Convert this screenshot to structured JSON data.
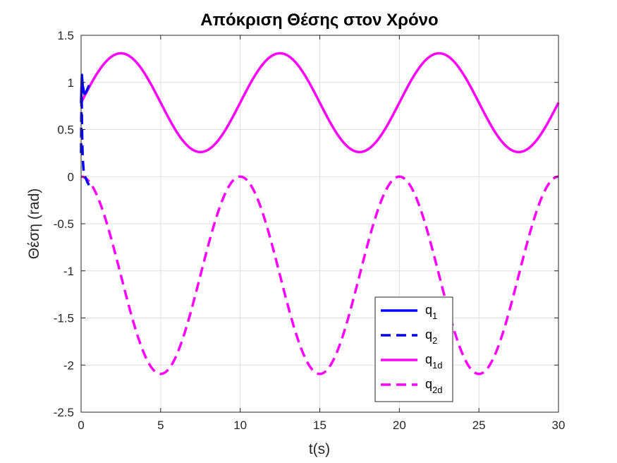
{
  "chart_data": {
    "type": "line",
    "title": "Απόκριση Θέσης στον Χρόνο",
    "xlabel": "t(s)",
    "ylabel": "Θέση (rad)",
    "xlim": [
      0,
      30
    ],
    "ylim": [
      -2.5,
      1.5
    ],
    "xticks": [
      "0",
      "5",
      "10",
      "15",
      "20",
      "25",
      "30"
    ],
    "yticks": [
      "-2.5",
      "-2",
      "-1.5",
      "-1",
      "-0.5",
      "0",
      "0.5",
      "1",
      "1.5"
    ],
    "grid": true,
    "legend_position": "bottom-right inside",
    "series": [
      {
        "name": "q",
        "sub": "1",
        "style": "solid",
        "color": "#0000ff",
        "x": [
          0,
          0.05,
          0.1,
          0.2,
          0.3,
          0.4,
          0.5
        ],
        "y": [
          0.78,
          1.08,
          0.97,
          0.88,
          0.89,
          0.93,
          0.97
        ]
      },
      {
        "name": "q",
        "sub": "2",
        "style": "dashed",
        "color": "#0000ff",
        "x": [
          0,
          0.03,
          0.06,
          0.1,
          0.15,
          0.2,
          0.3,
          0.4,
          0.5
        ],
        "y": [
          0.25,
          0.95,
          0.5,
          0.2,
          0.08,
          0.02,
          -0.02,
          -0.06,
          -0.09
        ]
      },
      {
        "name": "q",
        "sub": "1d",
        "style": "solid",
        "color": "#ff00ff",
        "expr": "0.785 + 0.524*sin(2*pi*t/10)"
      },
      {
        "name": "q",
        "sub": "2d",
        "style": "dashed",
        "color": "#ff00ff",
        "expr": "-1.047 + 1.047*cos(2*pi*t/10)"
      }
    ]
  }
}
